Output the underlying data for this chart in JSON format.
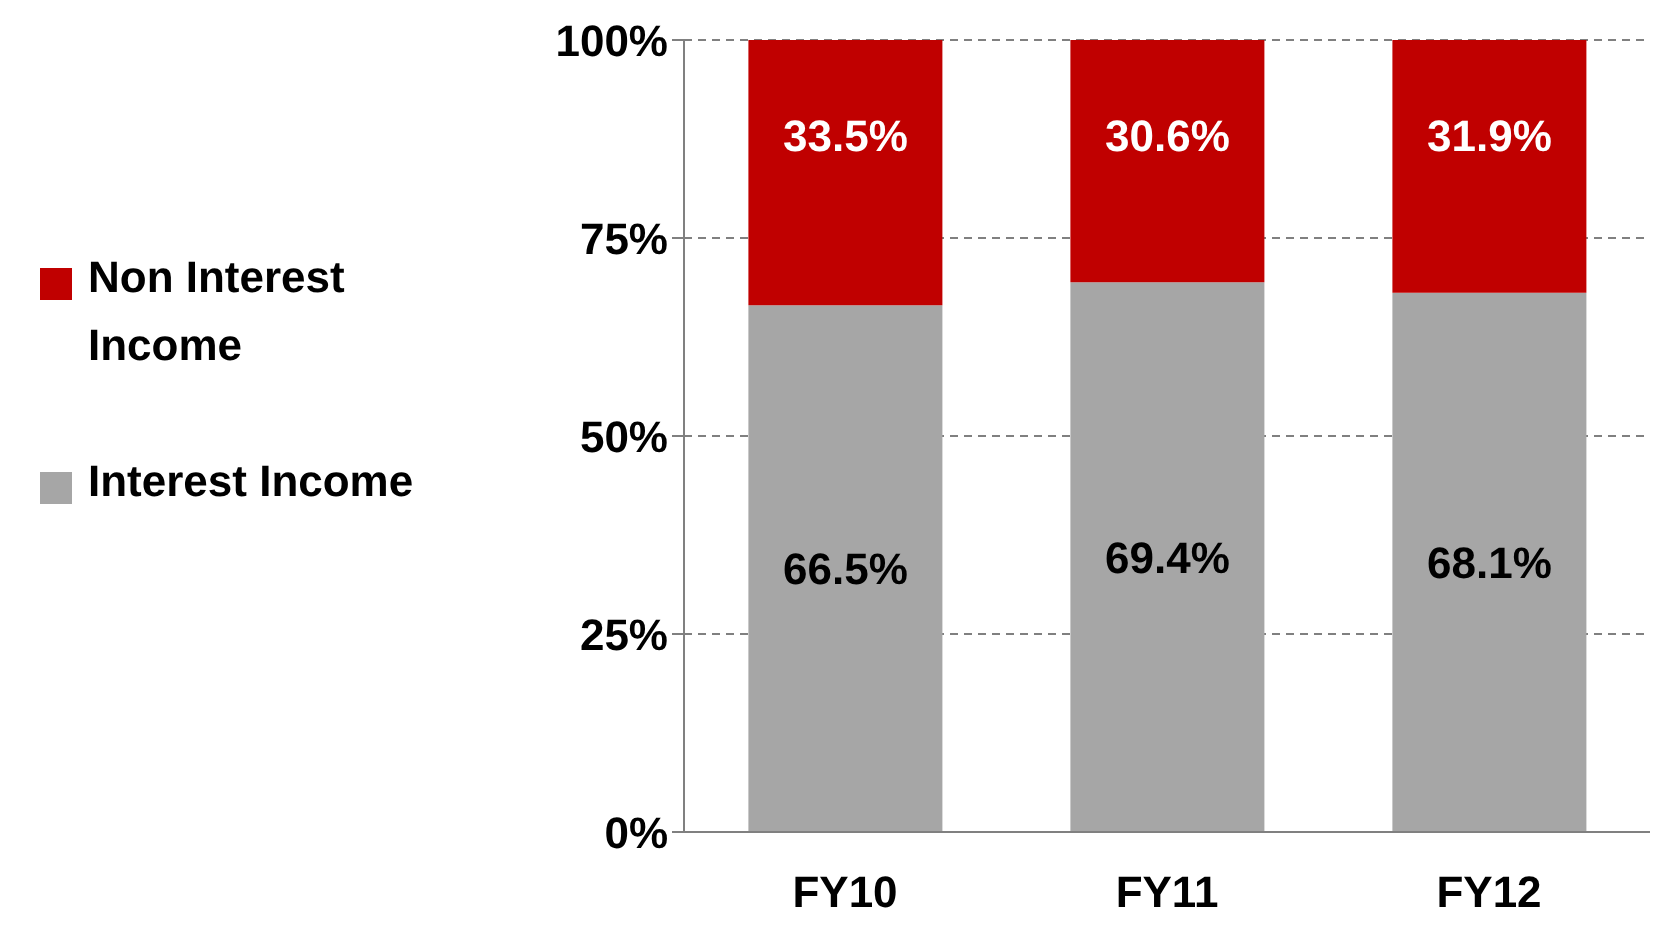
{
  "chart_data": {
    "type": "bar",
    "stacked": true,
    "categories": [
      "FY10",
      "FY11",
      "FY12"
    ],
    "series": [
      {
        "name": "Interest Income",
        "color": "#a6a6a6",
        "values": [
          66.5,
          69.4,
          68.1
        ],
        "value_labels": [
          "66.5%",
          "69.4%",
          "68.1%"
        ]
      },
      {
        "name": "Non Interest Income",
        "color": "#c00000",
        "values": [
          33.5,
          30.6,
          31.9
        ],
        "value_labels": [
          "33.5%",
          "30.6%",
          "31.9%"
        ]
      }
    ],
    "ylim": [
      0,
      100
    ],
    "yticks": [
      {
        "value": 0,
        "label": "0%"
      },
      {
        "value": 25,
        "label": "25%"
      },
      {
        "value": 50,
        "label": "50%"
      },
      {
        "value": 75,
        "label": "75%"
      },
      {
        "value": 100,
        "label": "100%"
      }
    ],
    "grid": "y",
    "legend": "left"
  }
}
